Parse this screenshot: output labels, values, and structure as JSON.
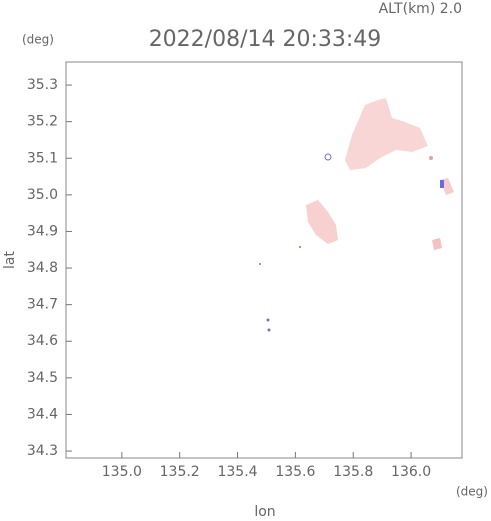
{
  "chart_data": {
    "type": "map",
    "title": "2022/08/14 20:33:49",
    "subtitle": "ALT(km) 2.0",
    "x_label": "lon",
    "y_label": "lat",
    "x_unit": "(deg)",
    "y_unit": "(deg)",
    "xlim": [
      134.807,
      136.176
    ],
    "ylim": [
      34.281,
      35.363
    ],
    "xticks": [
      {
        "value": 135,
        "label": "135.0"
      },
      135.2,
      135.4,
      135.6,
      135.8,
      {
        "value": 136,
        "label": "136.0"
      }
    ],
    "yticks": [
      34.3,
      34.4,
      34.5,
      34.6,
      34.7,
      34.8,
      34.9,
      {
        "value": 35,
        "label": "35.0"
      },
      35.1,
      35.2,
      35.3
    ]
  }
}
